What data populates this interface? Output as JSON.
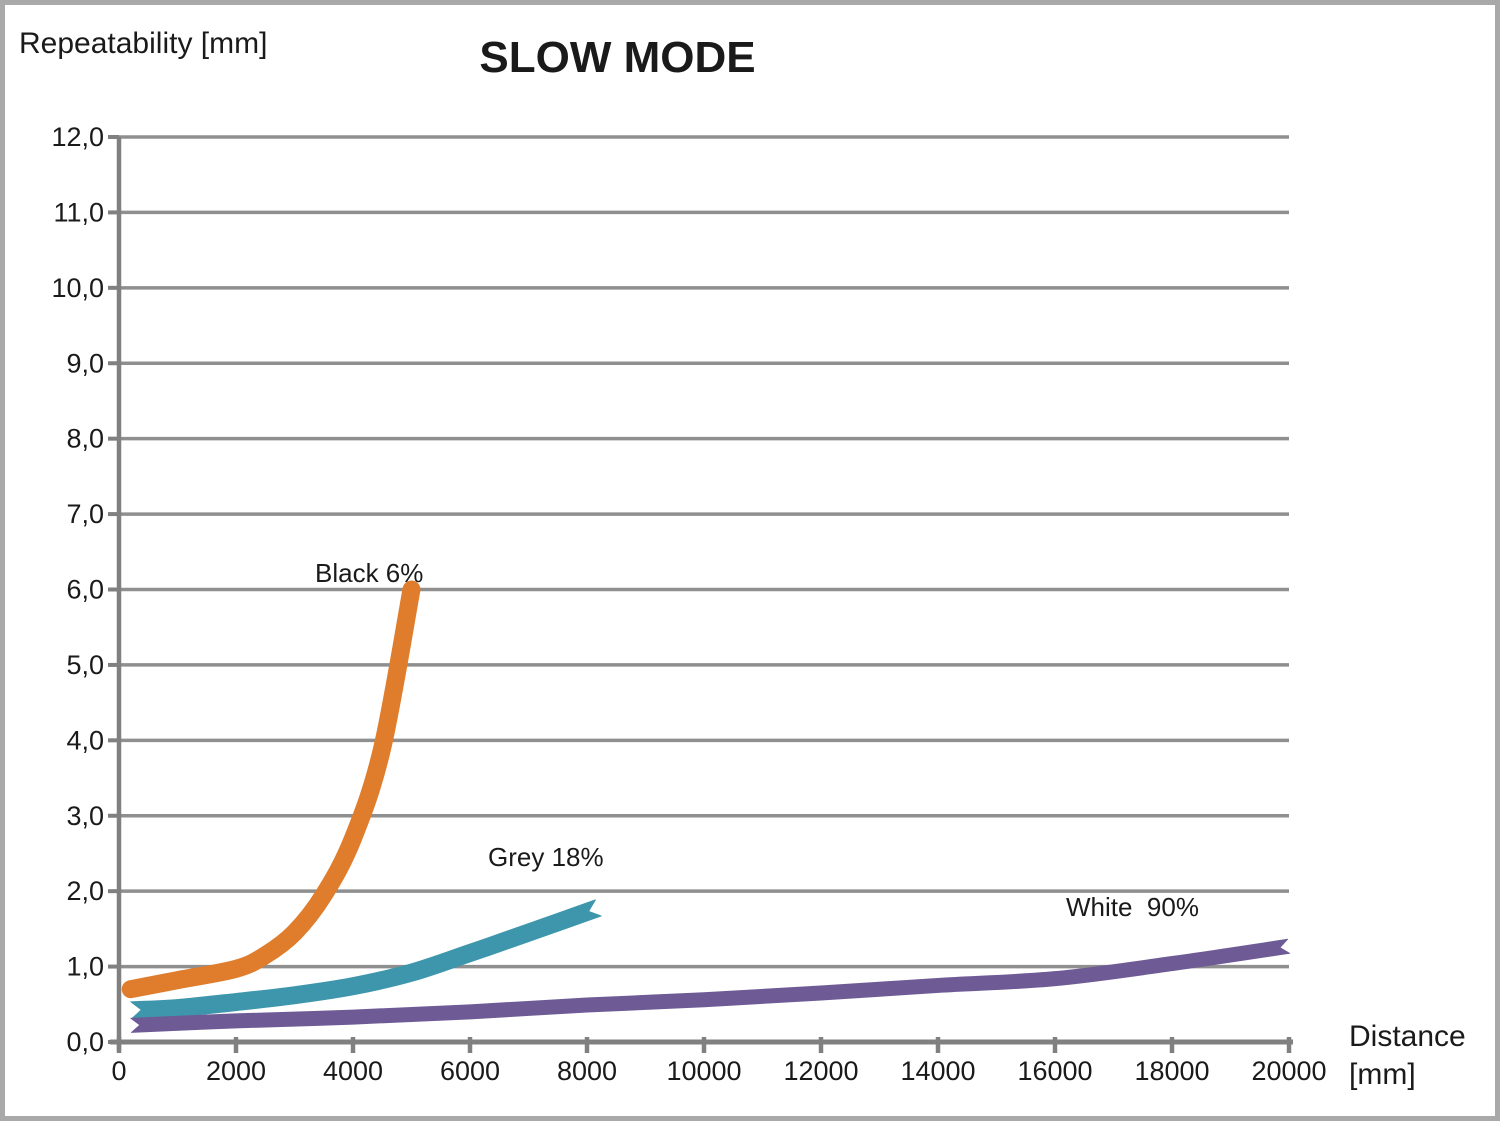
{
  "header": {
    "title": "SLOW MODE",
    "y_axis_title": "Repeatability [mm]"
  },
  "x_axis_title": {
    "line1": "Distance",
    "line2": "[mm]"
  },
  "chart_data": {
    "type": "line",
    "title": "SLOW MODE",
    "xlabel": "Distance [mm]",
    "ylabel": "Repeatability [mm]",
    "xlim": [
      0,
      20000
    ],
    "ylim": [
      0,
      12
    ],
    "grid": "horizontal",
    "legend": "inline-labels",
    "x_ticks": [
      0,
      2000,
      4000,
      6000,
      8000,
      10000,
      12000,
      14000,
      16000,
      18000,
      20000
    ],
    "x_tick_labels": [
      "0",
      "2000",
      "4000",
      "6000",
      "8000",
      "10000",
      "12000",
      "14000",
      "16000",
      "18000",
      "20000"
    ],
    "y_ticks": [
      0,
      1,
      2,
      3,
      4,
      5,
      6,
      7,
      8,
      9,
      10,
      11,
      12
    ],
    "y_tick_labels": [
      "0,0",
      "1,0",
      "2,0",
      "3,0",
      "4,0",
      "5,0",
      "6,0",
      "7,0",
      "8,0",
      "9,0",
      "10,0",
      "11,0",
      "12,0"
    ],
    "colors": {
      "gridline": "#8f8f8f",
      "axis": "#808080",
      "text": "#1a1a1a"
    },
    "series": [
      {
        "name": "Black 6%",
        "color": "#df7d2c",
        "line_width": 18,
        "end_style": "round",
        "points": [
          [
            200,
            0.7
          ],
          [
            1000,
            0.82
          ],
          [
            2000,
            0.97
          ],
          [
            2500,
            1.15
          ],
          [
            3000,
            1.45
          ],
          [
            3500,
            1.95
          ],
          [
            4000,
            2.7
          ],
          [
            4500,
            3.9
          ],
          [
            5000,
            6.0
          ]
        ]
      },
      {
        "name": "Grey 18%",
        "color": "#3d96ab",
        "line_width": 18,
        "end_style": "notch",
        "points": [
          [
            200,
            0.42
          ],
          [
            1000,
            0.45
          ],
          [
            2000,
            0.53
          ],
          [
            3000,
            0.62
          ],
          [
            4000,
            0.74
          ],
          [
            5000,
            0.92
          ],
          [
            6000,
            1.18
          ],
          [
            7000,
            1.45
          ],
          [
            8200,
            1.78
          ]
        ]
      },
      {
        "name": "White  90%",
        "color": "#6e5b96",
        "line_width": 15,
        "end_style": "notch",
        "points": [
          [
            200,
            0.22
          ],
          [
            2000,
            0.28
          ],
          [
            4000,
            0.33
          ],
          [
            6000,
            0.4
          ],
          [
            8000,
            0.49
          ],
          [
            10000,
            0.56
          ],
          [
            12000,
            0.65
          ],
          [
            14000,
            0.75
          ],
          [
            16000,
            0.84
          ],
          [
            18000,
            1.04
          ],
          [
            20000,
            1.27
          ]
        ]
      }
    ]
  }
}
